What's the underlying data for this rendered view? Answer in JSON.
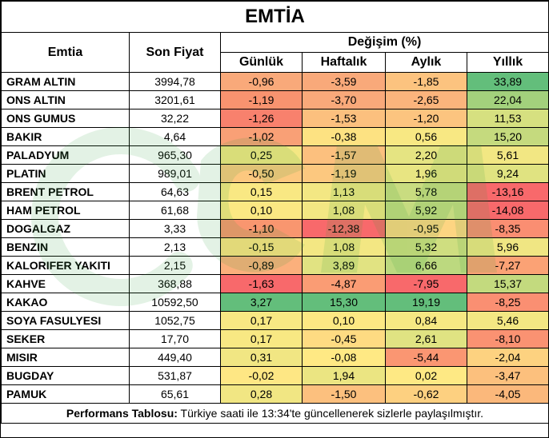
{
  "title": "EMTİA",
  "headers": {
    "commodity": "Emtia",
    "last_price": "Son Fiyat",
    "change_group": "Değişim (%)",
    "periods": [
      "Günlük",
      "Haftalık",
      "Aylık",
      "Yıllık"
    ]
  },
  "rows": [
    {
      "name": "GRAM ALTIN",
      "price": "3994,78",
      "values": [
        "-0,96",
        "-3,59",
        "-1,85",
        "33,89"
      ],
      "colors": [
        "#f9a97a",
        "#f9a97a",
        "#fcc37f",
        "#63be7b"
      ]
    },
    {
      "name": "ONS ALTIN",
      "price": "3201,61",
      "values": [
        "-1,19",
        "-3,70",
        "-2,65",
        "22,04"
      ],
      "colors": [
        "#f8936f",
        "#f9a97a",
        "#fbb47c",
        "#a3d17c"
      ]
    },
    {
      "name": "ONS GUMUS",
      "price": "32,22",
      "values": [
        "-1,26",
        "-1,53",
        "-1,20",
        "11,53"
      ],
      "colors": [
        "#f8816d",
        "#fcc07e",
        "#fcc47f",
        "#d6e080"
      ]
    },
    {
      "name": "BAKIR",
      "price": "4,64",
      "values": [
        "-1,02",
        "-0,38",
        "0,56",
        "15,20"
      ],
      "colors": [
        "#f9a076",
        "#fde282",
        "#f8e883",
        "#c5da7e"
      ]
    },
    {
      "name": "PALADYUM",
      "price": "965,30",
      "values": [
        "0,25",
        "-1,57",
        "2,20",
        "5,61"
      ],
      "colors": [
        "#f4e783",
        "#fcc07e",
        "#e5e482",
        "#f2e783"
      ]
    },
    {
      "name": "PLATIN",
      "price": "989,01",
      "values": [
        "-0,50",
        "-1,19",
        "1,96",
        "9,24"
      ],
      "colors": [
        "#fcc87f",
        "#fcc87f",
        "#e8e582",
        "#e0e381"
      ]
    },
    {
      "name": "BRENT PETROL",
      "price": "64,63",
      "values": [
        "0,15",
        "1,13",
        "5,78",
        "-13,16"
      ],
      "colors": [
        "#f9e883",
        "#f3e783",
        "#c9dc80",
        "#f8696b"
      ]
    },
    {
      "name": "HAM PETROL",
      "price": "61,68",
      "values": [
        "0,10",
        "1,08",
        "5,92",
        "-14,08"
      ],
      "colors": [
        "#fbe883",
        "#f3e783",
        "#c5db80",
        "#f8696b"
      ]
    },
    {
      "name": "DOGALGAZ",
      "price": "3,33",
      "values": [
        "-1,10",
        "-12,38",
        "-0,95",
        "-8,35"
      ],
      "colors": [
        "#f9966f",
        "#f8696b",
        "#fdd582",
        "#fa8e72"
      ]
    },
    {
      "name": "BENZIN",
      "price": "2,13",
      "values": [
        "-0,15",
        "1,08",
        "5,32",
        "5,96"
      ],
      "colors": [
        "#fee383",
        "#f3e783",
        "#cfde80",
        "#f0e683"
      ]
    },
    {
      "name": "KALORIFER YAKITI",
      "price": "2,15",
      "values": [
        "-0,89",
        "3,89",
        "6,66",
        "-7,27"
      ],
      "colors": [
        "#fbb07c",
        "#e1e382",
        "#bcd97f",
        "#fba275"
      ]
    },
    {
      "name": "KAHVE",
      "price": "368,88",
      "values": [
        "-1,63",
        "-4,87",
        "-7,95",
        "15,37"
      ],
      "colors": [
        "#f8696b",
        "#fa9c74",
        "#f8696b",
        "#c3da7e"
      ]
    },
    {
      "name": "KAKAO",
      "price": "10592,50",
      "values": [
        "3,27",
        "15,30",
        "19,19",
        "-8,25"
      ],
      "colors": [
        "#63be7b",
        "#63be7b",
        "#63be7b",
        "#fa8f72"
      ]
    },
    {
      "name": "SOYA FASULYESI",
      "price": "1052,75",
      "values": [
        "0,17",
        "0,10",
        "0,84",
        "5,46"
      ],
      "colors": [
        "#f8e883",
        "#fde883",
        "#f6e883",
        "#f3e783"
      ]
    },
    {
      "name": "SEKER",
      "price": "17,70",
      "values": [
        "0,17",
        "-0,45",
        "2,61",
        "-8,10"
      ],
      "colors": [
        "#f8e883",
        "#fedb82",
        "#e0e382",
        "#fa9272"
      ]
    },
    {
      "name": "MISIR",
      "price": "449,40",
      "values": [
        "0,31",
        "-0,08",
        "-5,44",
        "-2,04"
      ],
      "colors": [
        "#f1e683",
        "#ffe984",
        "#fa9672",
        "#fdd280"
      ]
    },
    {
      "name": "BUGDAY",
      "price": "531,87",
      "values": [
        "-0,02",
        "1,94",
        "0,02",
        "-3,47"
      ],
      "colors": [
        "#fee784",
        "#ebe582",
        "#fee984",
        "#fcc07d"
      ]
    },
    {
      "name": "PAMUK",
      "price": "65,61",
      "values": [
        "0,28",
        "-1,50",
        "-0,62",
        "-4,05"
      ],
      "colors": [
        "#f1e683",
        "#fcc07e",
        "#fdd080",
        "#fbb87b"
      ]
    }
  ],
  "footer": {
    "label": "Performans Tablosu:",
    "text": " Türkiye saati ile 13:34'te güncellenerek sizlerle paylaşılmıştır."
  },
  "watermark": {
    "text": "GCM",
    "color": "#2e9e3c"
  }
}
